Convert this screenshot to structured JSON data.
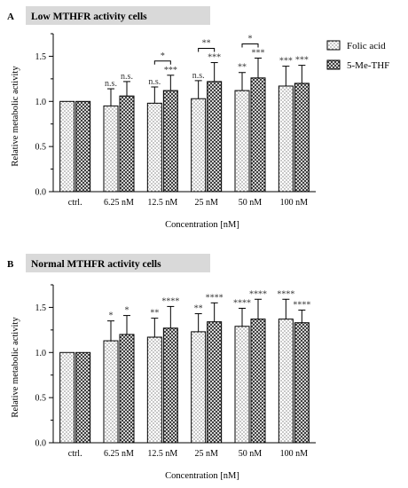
{
  "chart_data": [
    {
      "panel": "A",
      "type": "bar",
      "title": "Low MTHFR activity cells",
      "xlabel": "Concentration [nM]",
      "ylabel": "Relative metabolic activity",
      "ylim": [
        0,
        1.75
      ],
      "yticks": [
        "0.0",
        "0.5",
        "1.0",
        "1.5"
      ],
      "categories": [
        "ctrl.",
        "6.25 nM",
        "12.5 nM",
        "25 nM",
        "50 nM",
        "100 nM"
      ],
      "grid": false,
      "legend_position": "right",
      "series": [
        {
          "name": "Folic acid",
          "pattern": "dots",
          "values": [
            1.0,
            0.95,
            0.98,
            1.03,
            1.12,
            1.17
          ],
          "errors": [
            0,
            0.19,
            0.18,
            0.2,
            0.2,
            0.22
          ],
          "labels": [
            "",
            "n.s.",
            "n.s.",
            "n.s.",
            "**",
            "***"
          ]
        },
        {
          "name": "5-Me-THF",
          "pattern": "crosshatch",
          "values": [
            1.0,
            1.06,
            1.12,
            1.22,
            1.26,
            1.2
          ],
          "errors": [
            0,
            0.16,
            0.17,
            0.21,
            0.22,
            0.2
          ],
          "labels": [
            "",
            "n.s.",
            "***",
            "***",
            "***",
            "***"
          ]
        }
      ],
      "brackets": [
        {
          "category": "12.5 nM",
          "label": "*"
        },
        {
          "category": "25 nM",
          "label": "**"
        },
        {
          "category": "50 nM",
          "label": "*"
        }
      ]
    },
    {
      "panel": "B",
      "type": "bar",
      "title": "Normal MTHFR activity cells",
      "xlabel": "Concentration [nM]",
      "ylabel": "Relative metabolic activity",
      "ylim": [
        0,
        1.75
      ],
      "yticks": [
        "0.0",
        "0.5",
        "1.0",
        "1.5"
      ],
      "categories": [
        "ctrl.",
        "6.25 nM",
        "12.5 nM",
        "25 nM",
        "50 nM",
        "100 nM"
      ],
      "grid": false,
      "series": [
        {
          "name": "Folic acid",
          "pattern": "dots",
          "values": [
            1.0,
            1.13,
            1.17,
            1.23,
            1.29,
            1.37
          ],
          "errors": [
            0,
            0.22,
            0.21,
            0.2,
            0.2,
            0.22
          ],
          "labels": [
            "",
            "*",
            "**",
            "**",
            "****",
            "****"
          ]
        },
        {
          "name": "5-Me-THF",
          "pattern": "crosshatch",
          "values": [
            1.0,
            1.2,
            1.27,
            1.34,
            1.37,
            1.33
          ],
          "errors": [
            0,
            0.21,
            0.24,
            0.21,
            0.22,
            0.14
          ],
          "labels": [
            "",
            "*",
            "****",
            "****",
            "****",
            "****"
          ]
        }
      ],
      "brackets": []
    }
  ]
}
